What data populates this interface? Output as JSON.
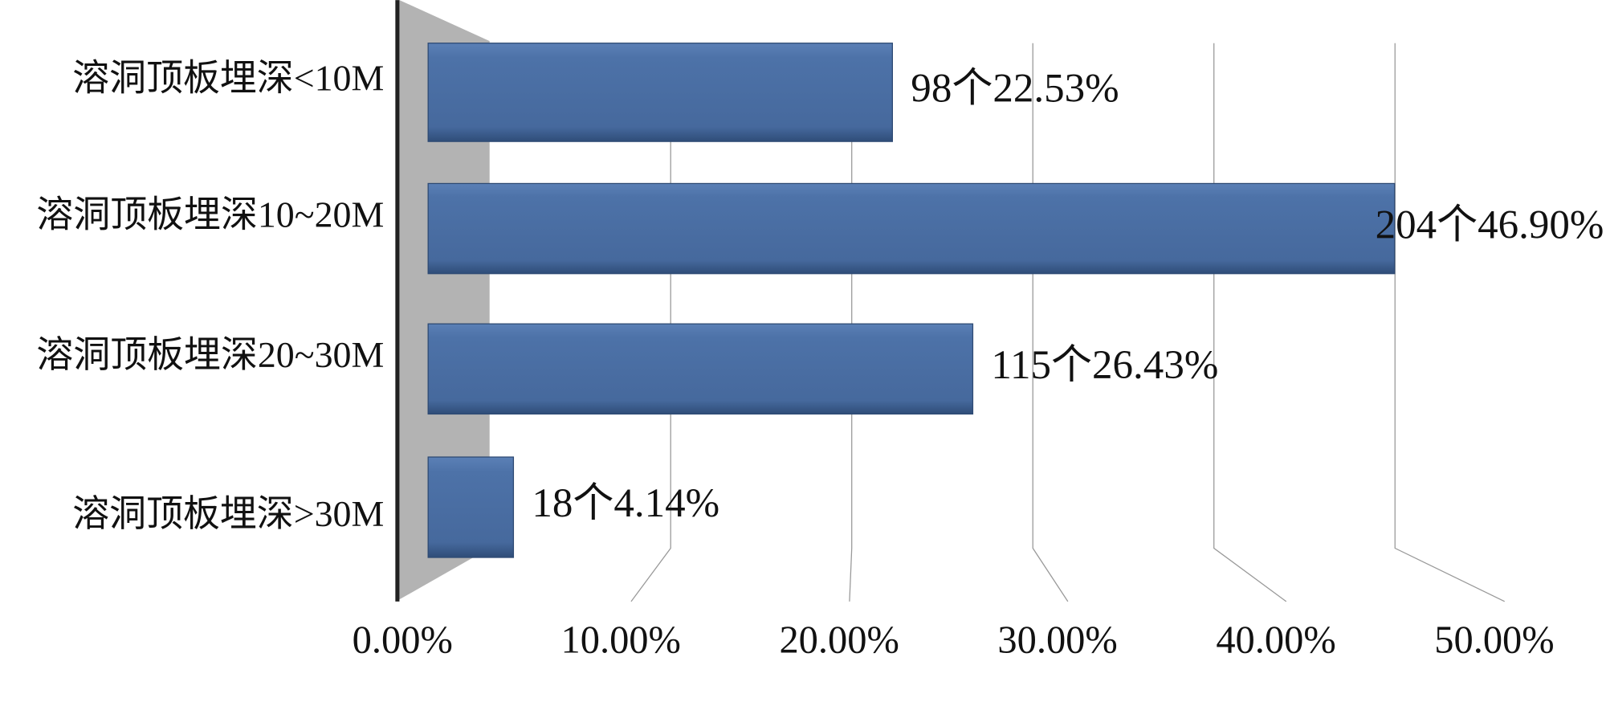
{
  "chart_data": {
    "type": "bar",
    "orientation": "horizontal",
    "categories": [
      "溶洞顶板埋深<10M",
      "溶洞顶板埋深10~20M",
      "溶洞顶板埋深20~30M",
      "溶洞顶板埋深>30M"
    ],
    "values": [
      22.53,
      46.9,
      26.43,
      4.14
    ],
    "value_labels": [
      "98个22.53%",
      "204个46.90%",
      "115个26.43%",
      "18个4.14%"
    ],
    "color": "#4a70a6",
    "xlim": [
      0,
      50
    ],
    "xticks": [
      {
        "value": 0,
        "label": "0.00%"
      },
      {
        "value": 10,
        "label": "10.00%"
      },
      {
        "value": 20,
        "label": "20.00%"
      },
      {
        "value": 30,
        "label": "30.00%"
      },
      {
        "value": 40,
        "label": "40.00%"
      },
      {
        "value": 50,
        "label": "50.00%"
      }
    ],
    "grid": true
  }
}
